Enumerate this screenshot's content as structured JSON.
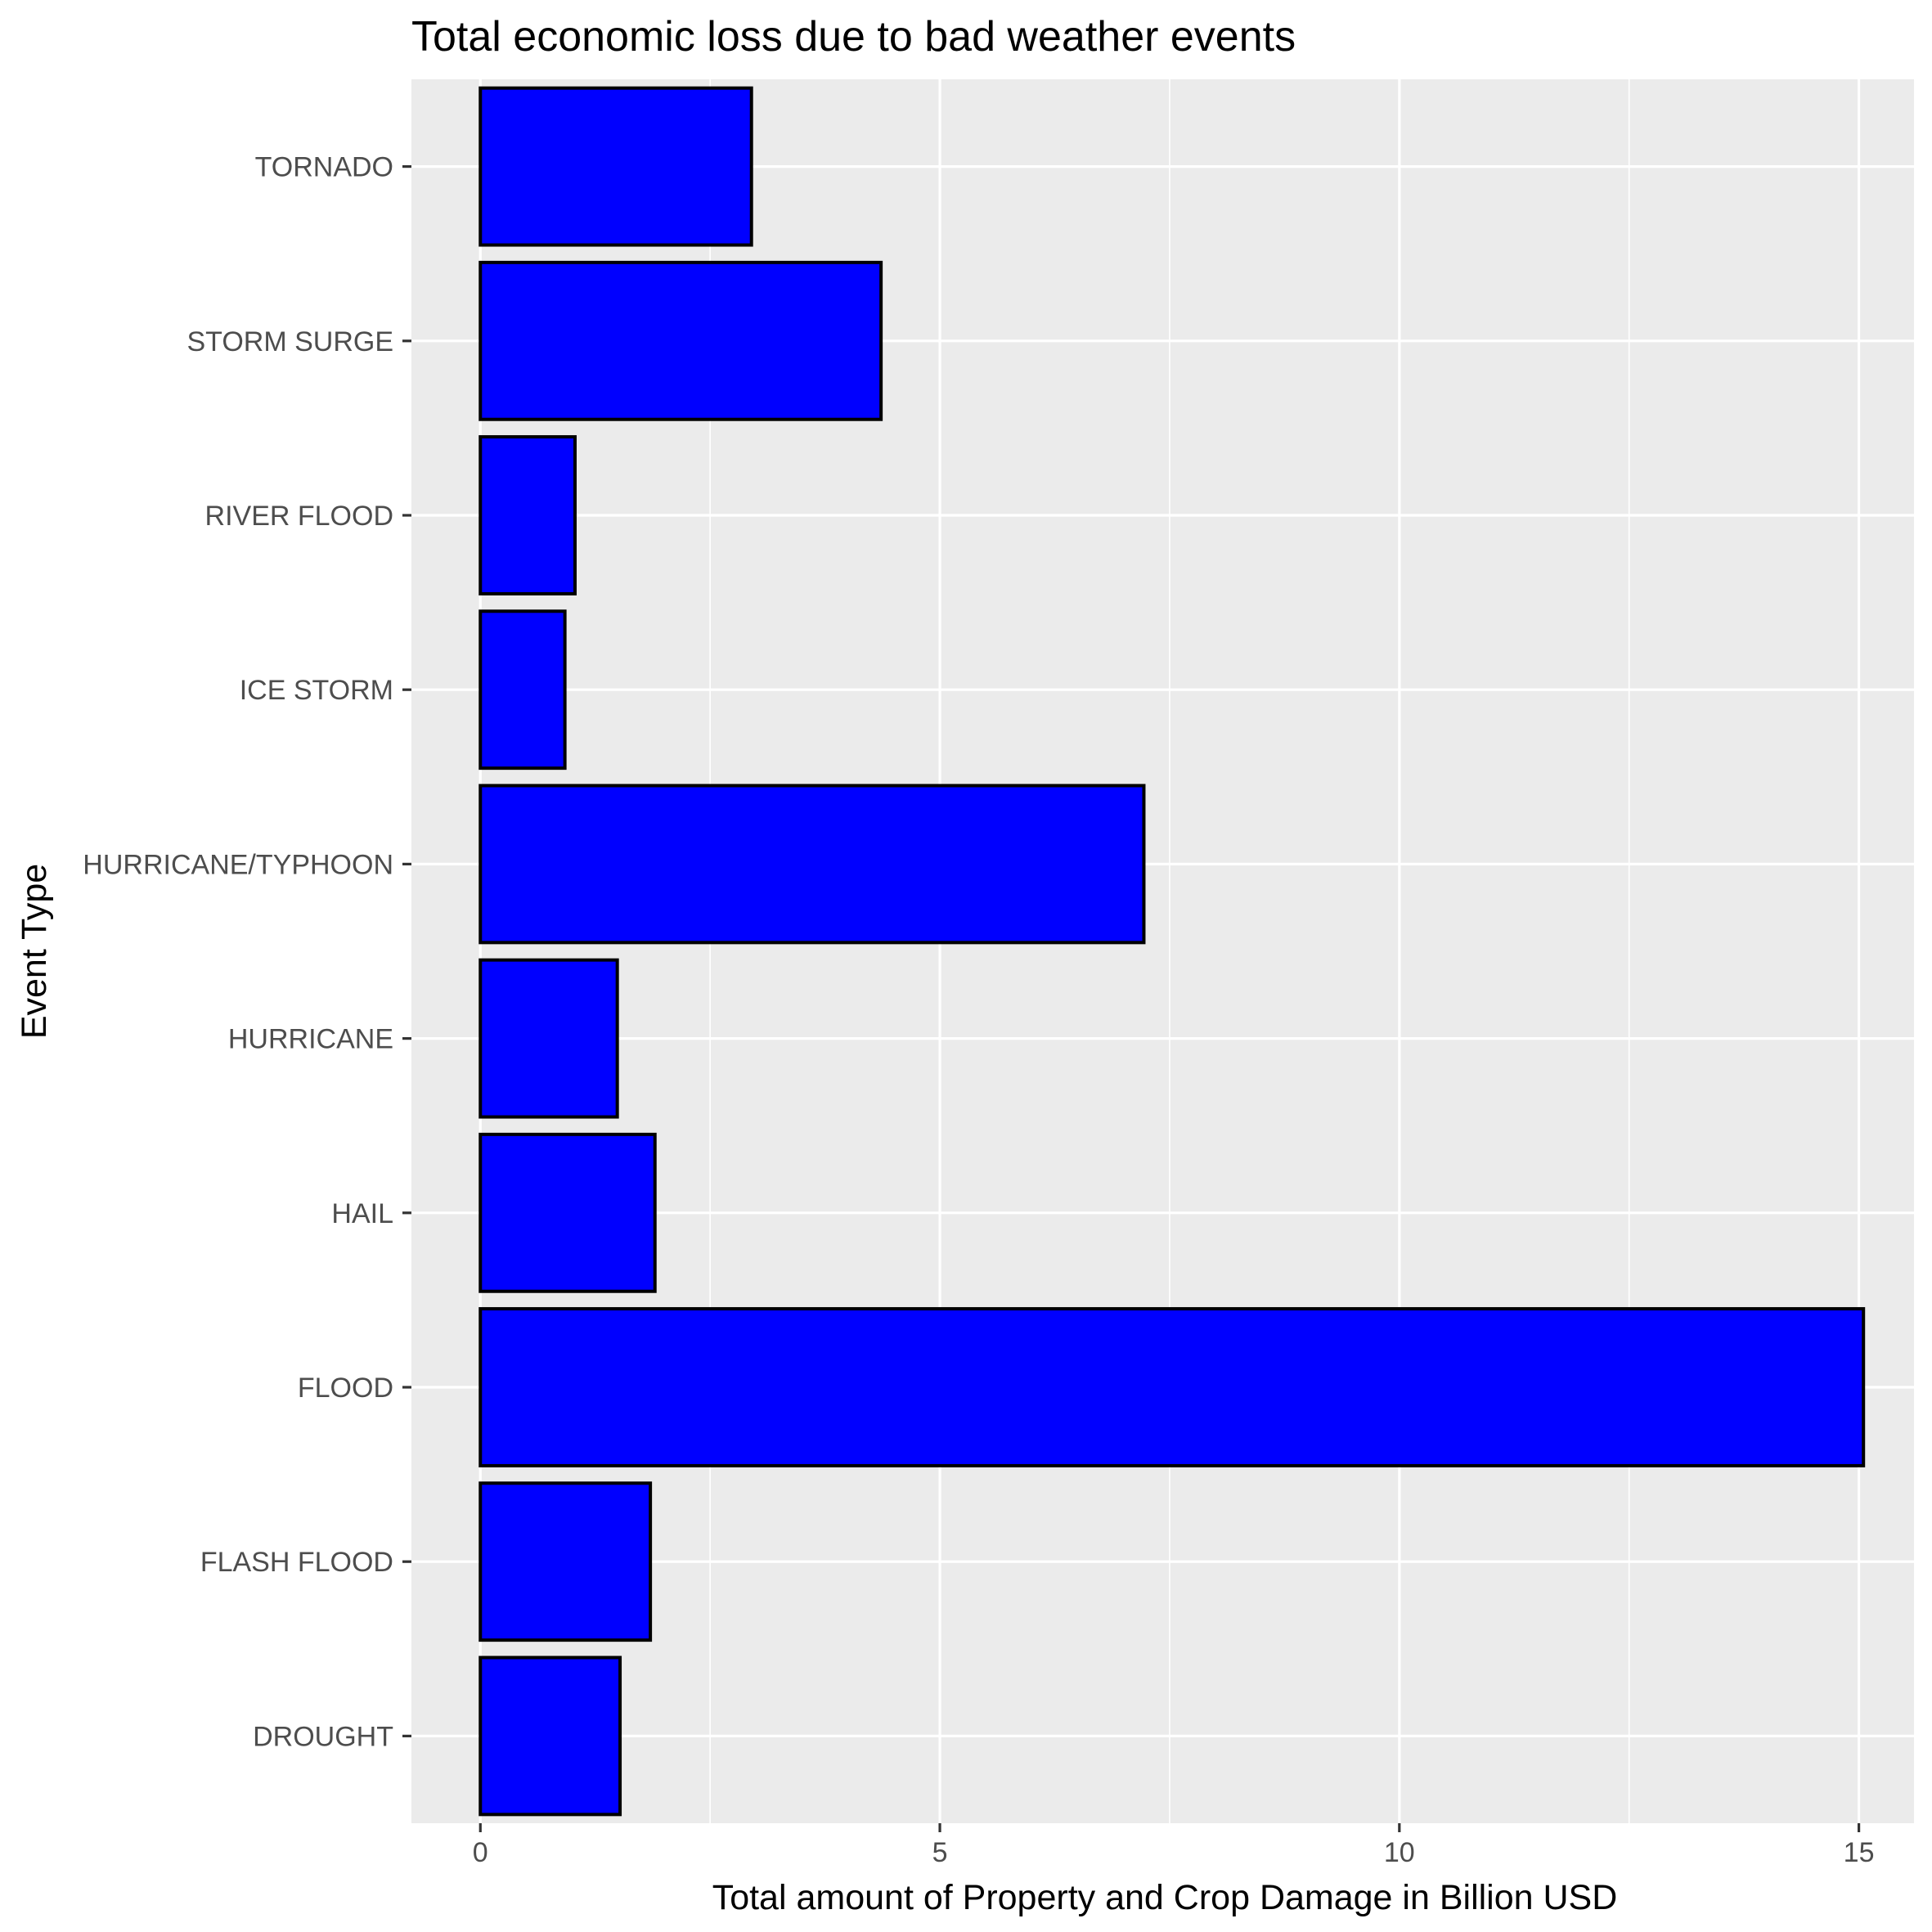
{
  "chart_data": {
    "type": "bar",
    "orientation": "horizontal",
    "title": "Total economic loss due to bad weather events",
    "xlabel": "Total amount of Property and Crop Damage in Billion USD",
    "ylabel": "Event Type",
    "categories": [
      "DROUGHT",
      "FLASH FLOOD",
      "FLOOD",
      "HAIL",
      "HURRICANE",
      "HURRICANE/TYPHOON",
      "ICE STORM",
      "RIVER FLOOD",
      "STORM SURGE",
      "TORNADO"
    ],
    "values": [
      1.52,
      1.85,
      15.05,
      1.9,
      1.49,
      7.22,
      0.92,
      1.03,
      4.36,
      2.95
    ],
    "xlim": [
      -0.75,
      15.6
    ],
    "xticks": [
      0,
      5,
      10,
      15
    ],
    "xtick_labels": [
      "0",
      "5",
      "10",
      "15"
    ],
    "bar_color": "#0000ff",
    "bar_outline": "#000000",
    "panel_background": "#ebebeb",
    "grid": true,
    "legend": "none"
  }
}
